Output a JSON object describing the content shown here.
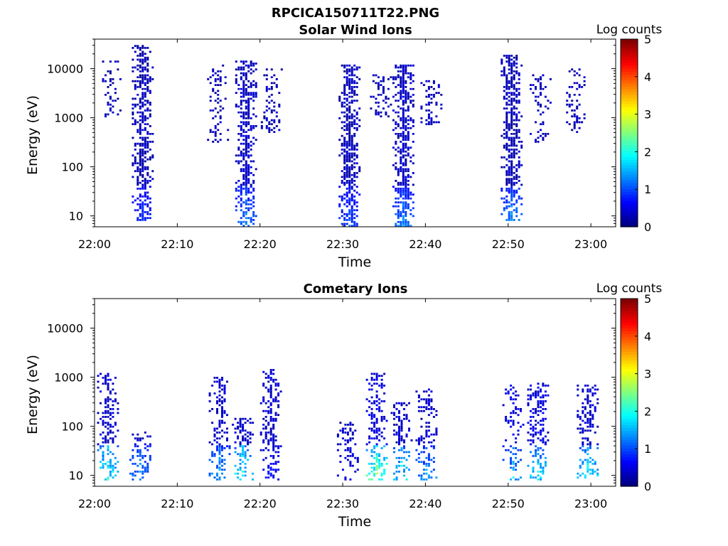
{
  "figure_title": "RPCICA150711T22.PNG",
  "chart_data": [
    {
      "type": "heatmap",
      "title": "Solar Wind Ions",
      "xlabel": "Time",
      "ylabel": "Energy (eV)",
      "y_scale": "log",
      "ylim": [
        6,
        40000
      ],
      "xlim": [
        "22:00",
        "23:03"
      ],
      "x_ticks": [
        "22:00",
        "22:10",
        "22:20",
        "22:30",
        "22:40",
        "22:50",
        "23:00"
      ],
      "y_ticks": [
        "10",
        "100",
        "1000",
        "10000"
      ],
      "colorbar": {
        "label": "Log counts",
        "min": 0,
        "max": 5,
        "ticks": [
          "0",
          "1",
          "2",
          "3",
          "4",
          "5"
        ],
        "colormap": "jet"
      },
      "bursts": [
        {
          "t": 1.8,
          "ymin": 1000,
          "ymax": 14000,
          "density": 0.35,
          "base": 0.1
        },
        {
          "t": 5.7,
          "ymin": 8,
          "ymax": 30000,
          "density": 0.7,
          "base": 0.1,
          "low_level": 1.2
        },
        {
          "t": 14.8,
          "ymin": 300,
          "ymax": 12000,
          "density": 0.3,
          "base": 0.1
        },
        {
          "t": 18.2,
          "ymin": 6,
          "ymax": 15000,
          "density": 0.75,
          "base": 0.15,
          "low_level": 1.6
        },
        {
          "t": 21.3,
          "ymin": 500,
          "ymax": 10000,
          "density": 0.4,
          "base": 0.1
        },
        {
          "t": 30.7,
          "ymin": 6,
          "ymax": 12000,
          "density": 0.75,
          "base": 0.1,
          "low_level": 1.3
        },
        {
          "t": 34.5,
          "ymin": 1000,
          "ymax": 8000,
          "density": 0.4,
          "base": 0.1
        },
        {
          "t": 37.2,
          "ymin": 6,
          "ymax": 12000,
          "density": 0.75,
          "base": 0.15,
          "low_level": 1.6
        },
        {
          "t": 40.6,
          "ymin": 700,
          "ymax": 6000,
          "density": 0.4,
          "base": 0.1
        },
        {
          "t": 50.3,
          "ymin": 8,
          "ymax": 20000,
          "density": 0.75,
          "base": 0.1,
          "low_level": 1.8
        },
        {
          "t": 53.8,
          "ymin": 300,
          "ymax": 8000,
          "density": 0.35,
          "base": 0.1
        },
        {
          "t": 58.2,
          "ymin": 500,
          "ymax": 10000,
          "density": 0.35,
          "base": 0.1
        }
      ]
    },
    {
      "type": "heatmap",
      "title": "Cometary Ions",
      "xlabel": "Time",
      "ylabel": "Energy (eV)",
      "y_scale": "log",
      "ylim": [
        6,
        40000
      ],
      "xlim": [
        "22:00",
        "23:03"
      ],
      "x_ticks": [
        "22:00",
        "22:10",
        "22:20",
        "22:30",
        "22:40",
        "22:50",
        "23:00"
      ],
      "y_ticks": [
        "10",
        "100",
        "1000",
        "10000"
      ],
      "colorbar": {
        "label": "Log counts",
        "min": 0,
        "max": 5,
        "ticks": [
          "0",
          "1",
          "2",
          "3",
          "4",
          "5"
        ],
        "colormap": "jet"
      },
      "bursts": [
        {
          "t": 1.5,
          "ymin": 8,
          "ymax": 1200,
          "density": 0.5,
          "base": 0.2,
          "low_level": 2.8
        },
        {
          "t": 5.4,
          "ymin": 8,
          "ymax": 80,
          "density": 0.5,
          "base": 0.2,
          "low_level": 1.8
        },
        {
          "t": 15.0,
          "ymin": 8,
          "ymax": 1000,
          "density": 0.5,
          "base": 0.2,
          "low_level": 2.0
        },
        {
          "t": 17.8,
          "ymin": 8,
          "ymax": 150,
          "density": 0.5,
          "base": 0.2,
          "low_level": 2.8
        },
        {
          "t": 21.2,
          "ymin": 8,
          "ymax": 1500,
          "density": 0.5,
          "base": 0.2,
          "low_level": 1.0
        },
        {
          "t": 30.5,
          "ymin": 8,
          "ymax": 120,
          "density": 0.35,
          "base": 0.2,
          "low_level": 0.8
        },
        {
          "t": 34.0,
          "ymin": 8,
          "ymax": 1200,
          "density": 0.55,
          "base": 0.3,
          "low_level": 3.3
        },
        {
          "t": 37.0,
          "ymin": 8,
          "ymax": 300,
          "density": 0.5,
          "base": 0.2,
          "low_level": 2.5
        },
        {
          "t": 40.0,
          "ymin": 8,
          "ymax": 600,
          "density": 0.5,
          "base": 0.2,
          "low_level": 2.0
        },
        {
          "t": 50.5,
          "ymin": 8,
          "ymax": 700,
          "density": 0.4,
          "base": 0.3,
          "low_level": 2.2
        },
        {
          "t": 53.5,
          "ymin": 8,
          "ymax": 800,
          "density": 0.55,
          "base": 0.3,
          "low_level": 2.5
        },
        {
          "t": 59.5,
          "ymin": 8,
          "ymax": 700,
          "density": 0.5,
          "base": 0.2,
          "low_level": 2.6
        }
      ]
    }
  ]
}
